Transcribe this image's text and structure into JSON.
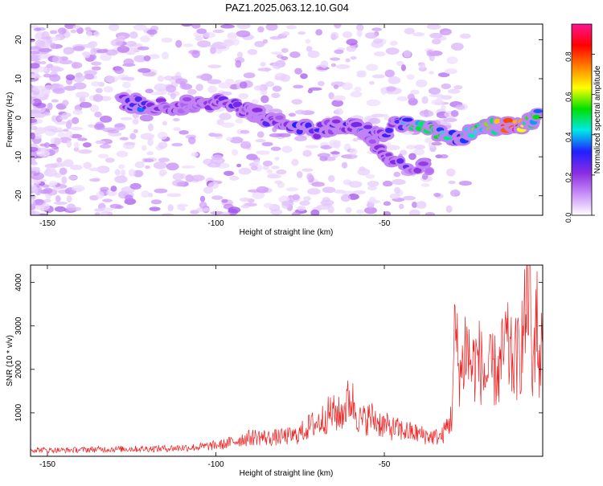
{
  "title": "PAZ1.2025.063.12.10.G04",
  "colors": {
    "snr_line": "#ee2222",
    "colormap": [
      "#ffffff",
      "#c890f8",
      "#8a2be2",
      "#2020ff",
      "#00e8e8",
      "#00e000",
      "#ffff00",
      "#ff8000",
      "#ff0000",
      "#ff1493"
    ]
  },
  "chart_data": [
    {
      "type": "heatmap",
      "title": "",
      "xlabel": "Height of straight line (km)",
      "ylabel": "Frequency (Hz)",
      "xlim": [
        -155,
        -3
      ],
      "ylim": [
        -25,
        24
      ],
      "x_ticks": [
        -150,
        -100,
        -50
      ],
      "y_ticks": [
        20,
        10,
        0,
        -10,
        -20
      ],
      "colorbar": {
        "label": "Normalized spectral amplitude",
        "range": [
          0.0,
          0.95
        ],
        "ticks": [
          0.0,
          0.2,
          0.4,
          0.6,
          0.8
        ]
      },
      "ridge": [
        {
          "x": -128,
          "y": 4,
          "amp": 0.25
        },
        {
          "x": -123,
          "y": 3.5,
          "amp": 0.35
        },
        {
          "x": -118,
          "y": 3,
          "amp": 0.2
        },
        {
          "x": -112,
          "y": 3,
          "amp": 0.22
        },
        {
          "x": -106,
          "y": 3.5,
          "amp": 0.18
        },
        {
          "x": -100,
          "y": 4,
          "amp": 0.24
        },
        {
          "x": -95,
          "y": 3,
          "amp": 0.26
        },
        {
          "x": -90,
          "y": 2,
          "amp": 0.2
        },
        {
          "x": -86,
          "y": 0,
          "amp": 0.25
        },
        {
          "x": -82,
          "y": -1,
          "amp": 0.22
        },
        {
          "x": -76,
          "y": -2.5,
          "amp": 0.3
        },
        {
          "x": -70,
          "y": -3.5,
          "amp": 0.28
        },
        {
          "x": -65,
          "y": -2,
          "amp": 0.25
        },
        {
          "x": -60,
          "y": -1.5,
          "amp": 0.3
        },
        {
          "x": -56,
          "y": -3,
          "amp": 0.32
        },
        {
          "x": -52,
          "y": -5,
          "amp": 0.25
        },
        {
          "x": -46,
          "y": -1.5,
          "amp": 0.3
        },
        {
          "x": -42,
          "y": -2,
          "amp": 0.45
        },
        {
          "x": -37,
          "y": -3,
          "amp": 0.5
        },
        {
          "x": -32,
          "y": -4.5,
          "amp": 0.45
        },
        {
          "x": -28,
          "y": -5.5,
          "amp": 0.35
        },
        {
          "x": -24,
          "y": -3.5,
          "amp": 0.55
        },
        {
          "x": -20,
          "y": -2.5,
          "amp": 0.5
        },
        {
          "x": -15,
          "y": -2,
          "amp": 0.75
        },
        {
          "x": -11,
          "y": -2,
          "amp": 0.92
        },
        {
          "x": -7,
          "y": -1.5,
          "amp": 0.55
        },
        {
          "x": -4,
          "y": 0.5,
          "amp": 0.45
        }
      ],
      "secondary_branch": [
        {
          "x": -55,
          "y": -6,
          "amp": 0.2
        },
        {
          "x": -50,
          "y": -9,
          "amp": 0.22
        },
        {
          "x": -47,
          "y": -11,
          "amp": 0.25
        },
        {
          "x": -35,
          "y": -14,
          "amp": 0.18
        }
      ]
    },
    {
      "type": "line",
      "title": "",
      "xlabel": "Height of straight line (km)",
      "ylabel": "SNR (10 * v/v)",
      "xlim": [
        -155,
        -3
      ],
      "ylim": [
        0,
        4400
      ],
      "x_ticks": [
        -150,
        -100,
        -50
      ],
      "y_ticks": [
        1000,
        2000,
        3000,
        4000
      ],
      "series": [
        {
          "x": [
            -155,
            -145,
            -135,
            -125,
            -115,
            -105,
            -98,
            -92,
            -88,
            -84,
            -80,
            -76,
            -72,
            -69,
            -66,
            -63,
            -60,
            -57,
            -54,
            -51,
            -48,
            -45,
            -42,
            -39,
            -36,
            -33,
            -30,
            -29,
            -28,
            -27,
            -26,
            -24,
            -22,
            -20,
            -18,
            -16,
            -14,
            -12,
            -10,
            -8,
            -7,
            -6,
            -5,
            -4,
            -3
          ],
          "y": [
            150,
            140,
            160,
            170,
            180,
            210,
            270,
            400,
            450,
            420,
            450,
            480,
            700,
            800,
            1000,
            950,
            1350,
            800,
            900,
            750,
            650,
            600,
            550,
            500,
            450,
            450,
            900,
            2900,
            2100,
            1900,
            2600,
            2050,
            2250,
            1800,
            2000,
            1900,
            2600,
            2150,
            2300,
            3200,
            4300,
            1500,
            3600,
            2000,
            2600
          ]
        }
      ]
    }
  ]
}
